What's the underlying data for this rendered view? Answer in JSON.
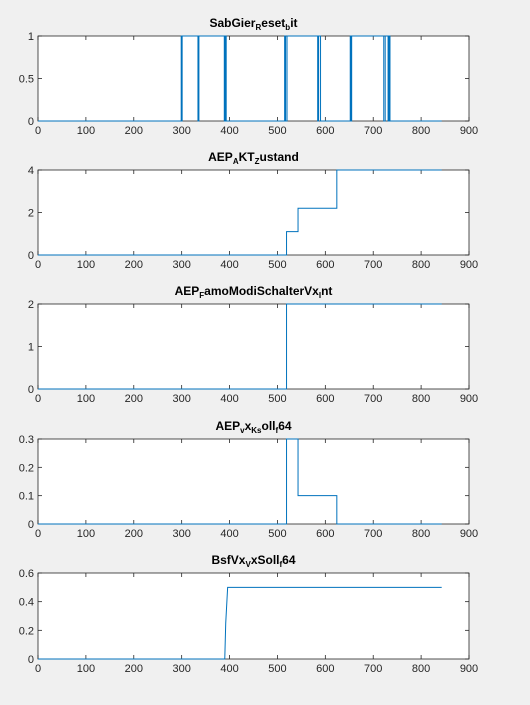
{
  "style": {
    "line_color": "#0072BD",
    "axes_bg": "#ffffff",
    "figure_bg": "#f0f0f0"
  },
  "chart_data": [
    {
      "type": "line",
      "title_parts": [
        [
          "SabGier",
          ""
        ],
        [
          "R",
          "sub"
        ],
        [
          "eset",
          ""
        ],
        [
          "b",
          "sub"
        ],
        [
          "it",
          ""
        ]
      ],
      "xlim": [
        0,
        900
      ],
      "ylim": [
        0,
        1
      ],
      "xticks": [
        0,
        100,
        200,
        300,
        400,
        500,
        600,
        700,
        800,
        900
      ],
      "yticks": [
        0,
        0.5,
        1
      ],
      "ytick_labels": [
        "0",
        "0.5",
        "1"
      ],
      "x": [
        0,
        299,
        299,
        300,
        300,
        301,
        301,
        334,
        334,
        336,
        336,
        389,
        389,
        391,
        391,
        393,
        393,
        515,
        515,
        517,
        517,
        520,
        520,
        584,
        584,
        586,
        586,
        590,
        590,
        652,
        652,
        654,
        654,
        655,
        655,
        722,
        722,
        725,
        725,
        731,
        731,
        733,
        733,
        735,
        735,
        843
      ],
      "y": [
        0,
        0,
        1,
        1,
        0,
        0,
        1,
        1,
        0,
        0,
        1,
        1,
        0,
        0,
        1,
        1,
        0,
        0,
        1,
        1,
        0,
        0,
        1,
        1,
        0,
        0,
        1,
        1,
        0,
        0,
        1,
        1,
        0,
        0,
        1,
        1,
        0,
        0,
        1,
        1,
        0,
        0,
        1,
        1,
        0,
        0
      ]
    },
    {
      "type": "line",
      "title_parts": [
        [
          "AEP",
          ""
        ],
        [
          "A",
          "sub"
        ],
        [
          "KT",
          ""
        ],
        [
          "Z",
          "sub"
        ],
        [
          "ustand",
          ""
        ]
      ],
      "xlim": [
        0,
        900
      ],
      "ylim": [
        0,
        4
      ],
      "xticks": [
        0,
        100,
        200,
        300,
        400,
        500,
        600,
        700,
        800,
        900
      ],
      "yticks": [
        0,
        2,
        4
      ],
      "ytick_labels": [
        "0",
        "2",
        "4"
      ],
      "x": [
        0,
        519,
        519,
        543,
        543,
        624,
        624,
        843
      ],
      "y": [
        0,
        0,
        1.1,
        1.1,
        2.2,
        2.2,
        4,
        4
      ]
    },
    {
      "type": "line",
      "title_parts": [
        [
          "AEP",
          ""
        ],
        [
          "F",
          "sub"
        ],
        [
          "amoModiSchalterVx",
          ""
        ],
        [
          "I",
          "sub"
        ],
        [
          "nt",
          ""
        ]
      ],
      "xlim": [
        0,
        900
      ],
      "ylim": [
        0,
        2
      ],
      "xticks": [
        0,
        100,
        200,
        300,
        400,
        500,
        600,
        700,
        800,
        900
      ],
      "yticks": [
        0,
        1,
        2
      ],
      "ytick_labels": [
        "0",
        "1",
        "2"
      ],
      "x": [
        0,
        519,
        519,
        843
      ],
      "y": [
        0,
        0,
        2,
        2
      ]
    },
    {
      "type": "line",
      "title_parts": [
        [
          "AEP",
          ""
        ],
        [
          "v",
          "sub"
        ],
        [
          "x",
          ""
        ],
        [
          "Ks",
          "sub"
        ],
        [
          "oll",
          ""
        ],
        [
          "f",
          "sub"
        ],
        [
          "64",
          ""
        ]
      ],
      "xlim": [
        0,
        900
      ],
      "ylim": [
        0,
        0.3
      ],
      "xticks": [
        0,
        100,
        200,
        300,
        400,
        500,
        600,
        700,
        800,
        900
      ],
      "yticks": [
        0,
        0.1,
        0.2,
        0.3
      ],
      "ytick_labels": [
        "0",
        "0.1",
        "0.2",
        "0.3"
      ],
      "x": [
        0,
        519,
        519,
        543,
        543,
        624,
        624,
        843
      ],
      "y": [
        0,
        0,
        0.3,
        0.3,
        0.1,
        0.1,
        0,
        0
      ]
    },
    {
      "type": "line",
      "title_parts": [
        [
          "BsfVx",
          ""
        ],
        [
          "V",
          "sub"
        ],
        [
          "xSoll",
          ""
        ],
        [
          "f",
          "sub"
        ],
        [
          "64",
          ""
        ]
      ],
      "xlim": [
        0,
        900
      ],
      "ylim": [
        0,
        0.6
      ],
      "xticks": [
        0,
        100,
        200,
        300,
        400,
        500,
        600,
        700,
        800,
        900
      ],
      "yticks": [
        0,
        0.2,
        0.4,
        0.6
      ],
      "ytick_labels": [
        "0",
        "0.2",
        "0.4",
        "0.6"
      ],
      "x": [
        0,
        390,
        392,
        396,
        843
      ],
      "y": [
        0,
        0,
        0.25,
        0.5,
        0.5
      ]
    }
  ]
}
